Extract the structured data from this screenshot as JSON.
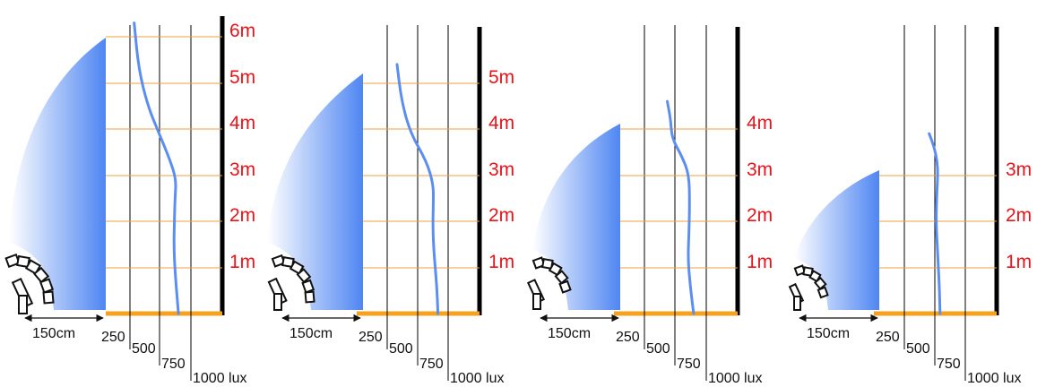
{
  "colors": {
    "height_label": "#e8131b",
    "height_gridline": "#f2a23c",
    "floor_line": "#f7a21e",
    "wall": "#000000",
    "lux_gridline": "#000000",
    "lux_curve": "#5b8ef0",
    "beam_dark": "#4f86f2",
    "beam_light": "#ffffff",
    "luminaire_stroke": "#111111"
  },
  "icons": [
    "luminaire-icon",
    "distance-arrow-icon"
  ],
  "panels": [
    {
      "ceiling_height_m": 6,
      "height_labels": [
        "1m",
        "2m",
        "3m",
        "4m",
        "5m",
        "6m"
      ],
      "distance_label": "150cm",
      "lux_labels": [
        "250",
        "500",
        "750",
        "1000 lux"
      ],
      "lux_curve_level": [
        [
          6.3,
          250
        ],
        [
          5.3,
          290
        ],
        [
          4.5,
          370
        ],
        [
          3.9,
          470
        ],
        [
          3.3,
          570
        ],
        [
          2.9,
          620
        ],
        [
          2.5,
          610
        ],
        [
          2.0,
          605
        ],
        [
          1.5,
          600
        ],
        [
          0.9,
          610
        ],
        [
          0,
          640
        ]
      ]
    },
    {
      "ceiling_height_m": 5,
      "height_labels": [
        "1m",
        "2m",
        "3m",
        "4m",
        "5m"
      ],
      "distance_label": "150cm",
      "lux_labels": [
        "250",
        "500",
        "750",
        "1000 lux"
      ],
      "lux_curve_level": [
        [
          5.4,
          300
        ],
        [
          4.6,
          340
        ],
        [
          3.9,
          420
        ],
        [
          3.3,
          560
        ],
        [
          2.8,
          620
        ],
        [
          2.4,
          620
        ],
        [
          1.9,
          615
        ],
        [
          1.3,
          625
        ],
        [
          0.6,
          650
        ],
        [
          0,
          660
        ]
      ]
    },
    {
      "ceiling_height_m": 4,
      "height_labels": [
        "1m",
        "2m",
        "3m",
        "4m"
      ],
      "distance_label": "150cm",
      "lux_labels": [
        "250",
        "500",
        "750",
        "1000 lux"
      ],
      "lux_curve_level": [
        [
          4.6,
          410
        ],
        [
          4.2,
          440
        ],
        [
          3.8,
          450
        ],
        [
          3.4,
          540
        ],
        [
          3.0,
          600
        ],
        [
          2.4,
          605
        ],
        [
          1.8,
          600
        ],
        [
          1.2,
          590
        ],
        [
          0.6,
          610
        ],
        [
          0,
          640
        ]
      ]
    },
    {
      "ceiling_height_m": 3,
      "height_labels": [
        "1m",
        "2m",
        "3m"
      ],
      "distance_label": "150cm",
      "lux_labels": [
        "250",
        "500",
        "750",
        "1000 lux"
      ],
      "lux_curve_level": [
        [
          3.9,
          435
        ],
        [
          3.6,
          480
        ],
        [
          3.3,
          505
        ],
        [
          3.0,
          510
        ],
        [
          2.5,
          500
        ],
        [
          2.0,
          495
        ],
        [
          1.5,
          505
        ],
        [
          1.0,
          515
        ],
        [
          0.5,
          525
        ],
        [
          0,
          530
        ]
      ]
    }
  ]
}
